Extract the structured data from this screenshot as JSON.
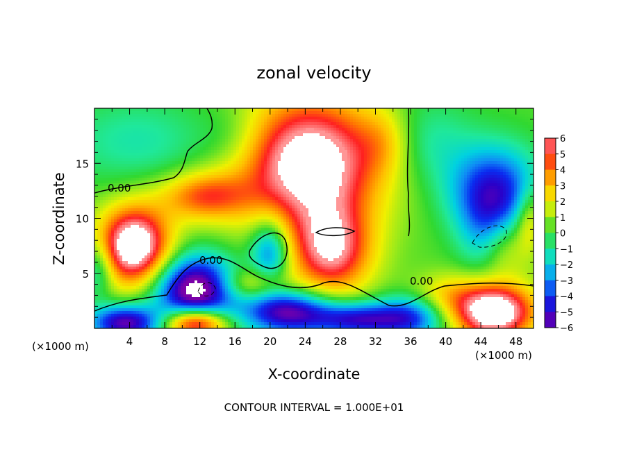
{
  "chart_data": {
    "type": "heatmap",
    "title": "zonal velocity",
    "xlabel": "X-coordinate",
    "ylabel": "Z-coordinate",
    "x_units_left": "(×1000 m)",
    "x_units_right": "(×1000 m)",
    "xlim": [
      0,
      50
    ],
    "ylim": [
      0,
      20
    ],
    "x_ticks": [
      "4",
      "8",
      "12",
      "16",
      "20",
      "24",
      "28",
      "32",
      "36",
      "40",
      "44",
      "48"
    ],
    "y_ticks": [
      "5",
      "10",
      "15"
    ],
    "colorbar": {
      "range": [
        -6,
        6
      ],
      "labels": [
        "6",
        "5",
        "4",
        "3",
        "2",
        "1",
        "0",
        "−1",
        "−2",
        "−3",
        "−4",
        "−5",
        "−6"
      ]
    },
    "contour_labels": [
      "0.00",
      "0.00",
      "0.00"
    ],
    "footer": "CONTOUR INTERVAL = 1.000E+01",
    "blobs": [
      {
        "x": 24.5,
        "y": 15,
        "rx": 8,
        "ry": 6,
        "amp": 7.5
      },
      {
        "x": 4.5,
        "y": 7.5,
        "rx": 4,
        "ry": 3.5,
        "amp": 8
      },
      {
        "x": 27,
        "y": 7,
        "rx": 4.5,
        "ry": 4,
        "amp": 5.5
      },
      {
        "x": 12.5,
        "y": 12,
        "rx": 5,
        "ry": 2.2,
        "amp": 4
      },
      {
        "x": 11.5,
        "y": 3.5,
        "rx": 4.5,
        "ry": 3,
        "amp": -7.5
      },
      {
        "x": 45.5,
        "y": 12.5,
        "rx": 5,
        "ry": 4,
        "amp": -5
      },
      {
        "x": 45,
        "y": 8,
        "rx": 3,
        "ry": 3.5,
        "amp": -4
      },
      {
        "x": 46,
        "y": 7.5,
        "rx": 3,
        "ry": 3,
        "amp": 4
      },
      {
        "x": 45.5,
        "y": 1.5,
        "rx": 4.5,
        "ry": 2.5,
        "amp": 8
      },
      {
        "x": 3.5,
        "y": 0.5,
        "rx": 4,
        "ry": 1.6,
        "amp": -6
      },
      {
        "x": 11.5,
        "y": 0.5,
        "rx": 3.5,
        "ry": 1.4,
        "amp": 7
      },
      {
        "x": 20,
        "y": 7,
        "rx": 2.2,
        "ry": 3,
        "amp": -4
      },
      {
        "x": 22,
        "y": 1.5,
        "rx": 5,
        "ry": 2,
        "amp": -6
      },
      {
        "x": 30,
        "y": 0.8,
        "rx": 5,
        "ry": 1.5,
        "amp": -5
      },
      {
        "x": 36,
        "y": 1,
        "rx": 4,
        "ry": 2,
        "amp": -4
      },
      {
        "x": 5,
        "y": 17,
        "rx": 9,
        "ry": 4,
        "amp": -1.5
      },
      {
        "x": 16,
        "y": 17.5,
        "rx": 4,
        "ry": 3,
        "amp": -1
      },
      {
        "x": 38,
        "y": 17,
        "rx": 5,
        "ry": 4,
        "amp": -1.5
      },
      {
        "x": 33,
        "y": 17,
        "rx": 3,
        "ry": 3,
        "amp": 1.5
      },
      {
        "x": 18,
        "y": 4,
        "rx": 4,
        "ry": 1.5,
        "amp": 2.5
      },
      {
        "x": 40,
        "y": 3,
        "rx": 4,
        "ry": 2,
        "amp": 2
      },
      {
        "x": 0.5,
        "y": 5.5,
        "rx": 1.8,
        "ry": 2.5,
        "amp": -2.5
      },
      {
        "x": 49.5,
        "y": 10,
        "rx": 1.5,
        "ry": 3,
        "amp": 2.5
      }
    ]
  }
}
